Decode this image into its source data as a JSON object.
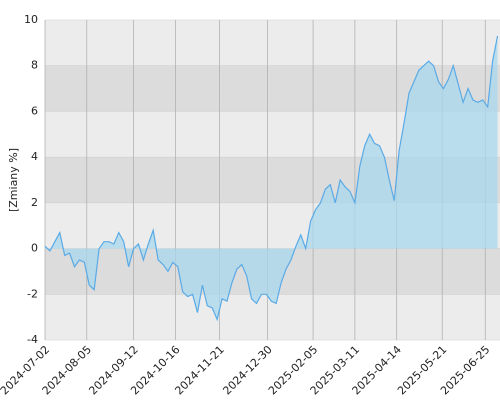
{
  "chart_data": {
    "type": "area",
    "y_label": "[Zmiany %]",
    "x": [
      "2024-07-02",
      "2024-07-06",
      "2024-07-10",
      "2024-07-14",
      "2024-07-18",
      "2024-07-22",
      "2024-07-26",
      "2024-07-30",
      "2024-08-03",
      "2024-08-07",
      "2024-08-11",
      "2024-08-15",
      "2024-08-19",
      "2024-08-23",
      "2024-08-27",
      "2024-08-31",
      "2024-09-04",
      "2024-09-08",
      "2024-09-12",
      "2024-09-16",
      "2024-09-20",
      "2024-09-24",
      "2024-09-28",
      "2024-10-02",
      "2024-10-06",
      "2024-10-10",
      "2024-10-14",
      "2024-10-18",
      "2024-10-22",
      "2024-10-26",
      "2024-10-30",
      "2024-11-03",
      "2024-11-07",
      "2024-11-11",
      "2024-11-15",
      "2024-11-19",
      "2024-11-23",
      "2024-11-27",
      "2024-12-01",
      "2024-12-05",
      "2024-12-09",
      "2024-12-13",
      "2024-12-17",
      "2024-12-21",
      "2024-12-25",
      "2024-12-29",
      "2025-01-02",
      "2025-01-06",
      "2025-01-10",
      "2025-01-14",
      "2025-01-18",
      "2025-01-22",
      "2025-01-26",
      "2025-01-30",
      "2025-02-03",
      "2025-02-07",
      "2025-02-11",
      "2025-02-15",
      "2025-02-19",
      "2025-02-23",
      "2025-02-27",
      "2025-03-03",
      "2025-03-07",
      "2025-03-11",
      "2025-03-15",
      "2025-03-19",
      "2025-03-23",
      "2025-03-27",
      "2025-03-31",
      "2025-04-04",
      "2025-04-08",
      "2025-04-12",
      "2025-04-16",
      "2025-04-20",
      "2025-04-24",
      "2025-04-28",
      "2025-05-02",
      "2025-05-06",
      "2025-05-10",
      "2025-05-14",
      "2025-05-18",
      "2025-05-22",
      "2025-05-26",
      "2025-05-30",
      "2025-06-03",
      "2025-06-07",
      "2025-06-11",
      "2025-06-15",
      "2025-06-19",
      "2025-06-23",
      "2025-06-27",
      "2025-07-01",
      "2025-07-05"
    ],
    "values": [
      0.1,
      -0.1,
      0.3,
      0.7,
      -0.3,
      -0.2,
      -0.8,
      -0.5,
      -0.6,
      -1.6,
      -1.8,
      0.0,
      0.3,
      0.3,
      0.2,
      0.7,
      0.3,
      -0.8,
      0.0,
      0.2,
      -0.5,
      0.2,
      0.8,
      -0.5,
      -0.7,
      -1.0,
      -0.6,
      -0.8,
      -1.9,
      -2.1,
      -2.0,
      -2.8,
      -1.6,
      -2.5,
      -2.6,
      -3.1,
      -2.2,
      -2.3,
      -1.5,
      -0.9,
      -0.7,
      -1.2,
      -2.2,
      -2.4,
      -2.0,
      -2.0,
      -2.3,
      -2.4,
      -1.5,
      -0.9,
      -0.5,
      0.1,
      0.6,
      0.0,
      1.2,
      1.7,
      2.0,
      2.6,
      2.8,
      2.0,
      3.0,
      2.7,
      2.5,
      2.0,
      3.6,
      4.5,
      5.0,
      4.6,
      4.5,
      4.0,
      3.0,
      2.1,
      4.3,
      5.5,
      6.8,
      7.3,
      7.8,
      8.0,
      8.2,
      8.0,
      7.3,
      7.0,
      7.4,
      8.0,
      7.2,
      6.4,
      7.0,
      6.5,
      6.4,
      6.5,
      6.2,
      8.2,
      9.3
    ],
    "color": "#5aaae6",
    "fill": "#a8d8ee",
    "band_colors": [
      "#ececec",
      "#dcdcdc"
    ],
    "xlim": [
      "2024-07-02",
      "2025-07-07"
    ],
    "xticks": [
      "2024-07-02",
      "2024-08-05",
      "2024-09-12",
      "2024-10-16",
      "2024-11-21",
      "2024-12-30",
      "2025-02-05",
      "2025-03-11",
      "2025-04-14",
      "2025-05-21",
      "2025-06-25"
    ],
    "ylim": [
      -4,
      10
    ],
    "yticks": [
      -4,
      -2,
      0,
      2,
      4,
      6,
      8,
      10
    ],
    "grid": true
  }
}
